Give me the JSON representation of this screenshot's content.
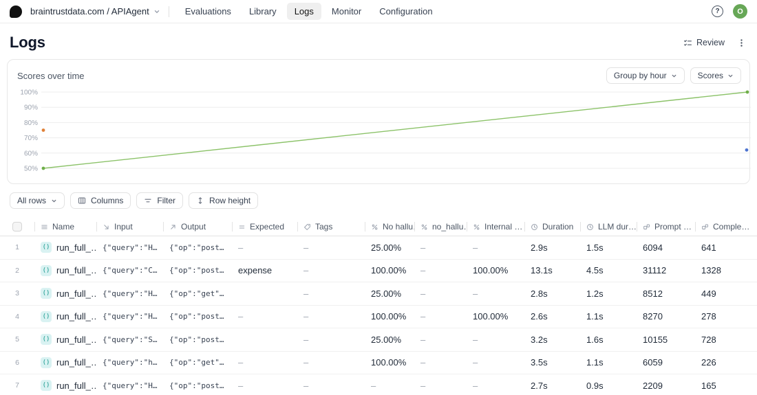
{
  "brand": {
    "org_project": "braintrustdata.com / APIAgent"
  },
  "nav": {
    "items": [
      {
        "label": "Evaluations",
        "active": false
      },
      {
        "label": "Library",
        "active": false
      },
      {
        "label": "Logs",
        "active": true
      },
      {
        "label": "Monitor",
        "active": false
      },
      {
        "label": "Configuration",
        "active": false
      }
    ]
  },
  "user": {
    "avatar_initial": "O"
  },
  "page": {
    "title": "Logs",
    "review_label": "Review"
  },
  "chart_panel": {
    "title": "Scores over time",
    "group_by_label": "Group by hour",
    "scores_label": "Scores"
  },
  "chart_data": {
    "type": "line",
    "title": "Scores over time",
    "ylim": [
      50,
      100
    ],
    "yticks": [
      100,
      90,
      80,
      70,
      60,
      50
    ],
    "ytick_suffix": "%",
    "grid": "horizontal",
    "legend": false,
    "series": [
      {
        "name": "green-score-line",
        "type": "line",
        "color": "#8bc268",
        "dot_color": "#6fae49",
        "points": [
          {
            "x": 0,
            "y": 50
          },
          {
            "x": 1,
            "y": 100
          }
        ]
      },
      {
        "name": "orange-score-point",
        "type": "scatter",
        "color": "#e08138",
        "points": [
          {
            "x": 0,
            "y": 75
          }
        ]
      },
      {
        "name": "blue-score-point",
        "type": "scatter",
        "color": "#4d74d0",
        "points": [
          {
            "x": 0.999,
            "y": 62
          }
        ]
      }
    ]
  },
  "toolbar": {
    "all_rows": "All rows",
    "columns": "Columns",
    "filter": "Filter",
    "row_height": "Row height"
  },
  "table": {
    "columns": [
      {
        "label": "Name",
        "icon": "menu-icon"
      },
      {
        "label": "Input",
        "icon": "arrow-down-right-icon"
      },
      {
        "label": "Output",
        "icon": "arrow-up-right-icon"
      },
      {
        "label": "Expected",
        "icon": "equals-icon"
      },
      {
        "label": "Tags",
        "icon": "tag-icon"
      },
      {
        "label": "No hallu…",
        "icon": "percent-icon"
      },
      {
        "label": "no_hallu…",
        "icon": "percent-icon"
      },
      {
        "label": "Internal …",
        "icon": "percent-icon"
      },
      {
        "label": "Duration",
        "icon": "clock-icon"
      },
      {
        "label": "LLM dur…",
        "icon": "clock-icon"
      },
      {
        "label": "Prompt …",
        "icon": "tokens-icon"
      },
      {
        "label": "Comple…",
        "icon": "tokens-icon"
      }
    ],
    "badge_glyph": "()",
    "rows": [
      {
        "num": "1",
        "cells": [
          "run_full_…",
          "{\"query\":\"H…",
          "{\"op\":\"post…",
          "–",
          "–",
          "25.00%",
          "–",
          "–",
          "2.9s",
          "1.5s",
          "6094",
          "641"
        ]
      },
      {
        "num": "2",
        "cells": [
          "run_full_…",
          "{\"query\":\"C…",
          "{\"op\":\"post…",
          "expense",
          "–",
          "100.00%",
          "–",
          "100.00%",
          "13.1s",
          "4.5s",
          "31112",
          "1328"
        ]
      },
      {
        "num": "3",
        "cells": [
          "run_full_…",
          "{\"query\":\"H…",
          "{\"op\":\"get\"…",
          "",
          "–",
          "25.00%",
          "–",
          "–",
          "2.8s",
          "1.2s",
          "8512",
          "449"
        ]
      },
      {
        "num": "4",
        "cells": [
          "run_full_…",
          "{\"query\":\"H…",
          "{\"op\":\"post…",
          "–",
          "–",
          "100.00%",
          "–",
          "100.00%",
          "2.6s",
          "1.1s",
          "8270",
          "278"
        ]
      },
      {
        "num": "5",
        "cells": [
          "run_full_…",
          "{\"query\":\"S…",
          "{\"op\":\"post…",
          "",
          "–",
          "25.00%",
          "–",
          "–",
          "3.2s",
          "1.6s",
          "10155",
          "728"
        ]
      },
      {
        "num": "6",
        "cells": [
          "run_full_…",
          "{\"query\":\"h…",
          "{\"op\":\"get\"…",
          "–",
          "–",
          "100.00%",
          "–",
          "–",
          "3.5s",
          "1.1s",
          "6059",
          "226"
        ]
      },
      {
        "num": "7",
        "cells": [
          "run_full_…",
          "{\"query\":\"H…",
          "{\"op\":\"post…",
          "–",
          "–",
          "–",
          "–",
          "–",
          "2.7s",
          "0.9s",
          "2209",
          "165"
        ]
      }
    ]
  }
}
